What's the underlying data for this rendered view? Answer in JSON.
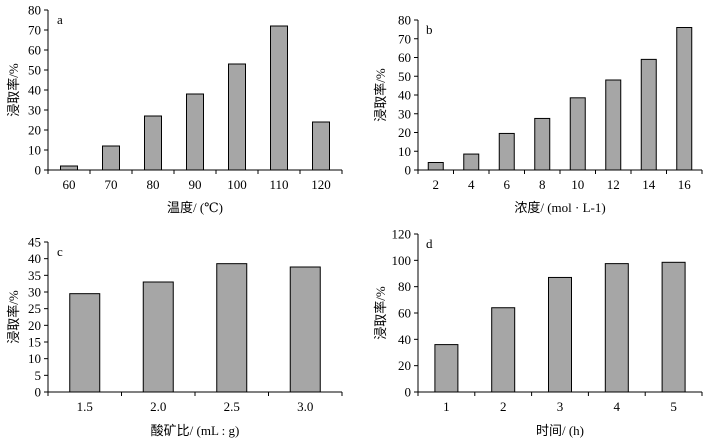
{
  "chart_data": [
    {
      "type": "bar",
      "panel": "a",
      "categories": [
        "60",
        "70",
        "80",
        "90",
        "100",
        "110",
        "120"
      ],
      "values": [
        2,
        12,
        27,
        38,
        53,
        72,
        24
      ],
      "xlabel": "温度/ (℃)",
      "ylabel": "浸取率/%",
      "ylim": [
        0,
        80
      ],
      "yticks": [
        "0",
        "10",
        "20",
        "30",
        "40",
        "50",
        "60",
        "70",
        "80"
      ],
      "bar_color": "#a6a6a6"
    },
    {
      "type": "bar",
      "panel": "b",
      "categories": [
        "2",
        "4",
        "6",
        "8",
        "10",
        "12",
        "14",
        "16"
      ],
      "values": [
        4,
        8.5,
        19.5,
        27.5,
        38.5,
        48,
        59,
        76
      ],
      "xlabel": "浓度/ (mol · L-1)",
      "ylabel": "浸取率/%",
      "ylim": [
        0,
        80
      ],
      "yticks": [
        "0",
        "10",
        "20",
        "30",
        "40",
        "50",
        "60",
        "70",
        "80"
      ],
      "bar_color": "#a6a6a6"
    },
    {
      "type": "bar",
      "panel": "c",
      "categories": [
        "1.5",
        "2.0",
        "2.5",
        "3.0"
      ],
      "values": [
        29.5,
        33,
        38.5,
        37.5
      ],
      "xlabel": "酸矿比/ (mL : g)",
      "ylabel": "浸取率/%",
      "ylim": [
        0,
        45
      ],
      "yticks": [
        "0",
        "5",
        "10",
        "15",
        "20",
        "25",
        "30",
        "35",
        "40",
        "45"
      ],
      "bar_color": "#a6a6a6"
    },
    {
      "type": "bar",
      "panel": "d",
      "categories": [
        "1",
        "2",
        "3",
        "4",
        "5"
      ],
      "values": [
        36,
        64,
        87,
        97.5,
        98.5
      ],
      "xlabel": "时间/ (h)",
      "ylabel": "浸取率/%",
      "ylim": [
        0,
        120
      ],
      "yticks": [
        "0",
        "20",
        "40",
        "60",
        "80",
        "100",
        "120"
      ],
      "bar_color": "#a6a6a6"
    }
  ]
}
